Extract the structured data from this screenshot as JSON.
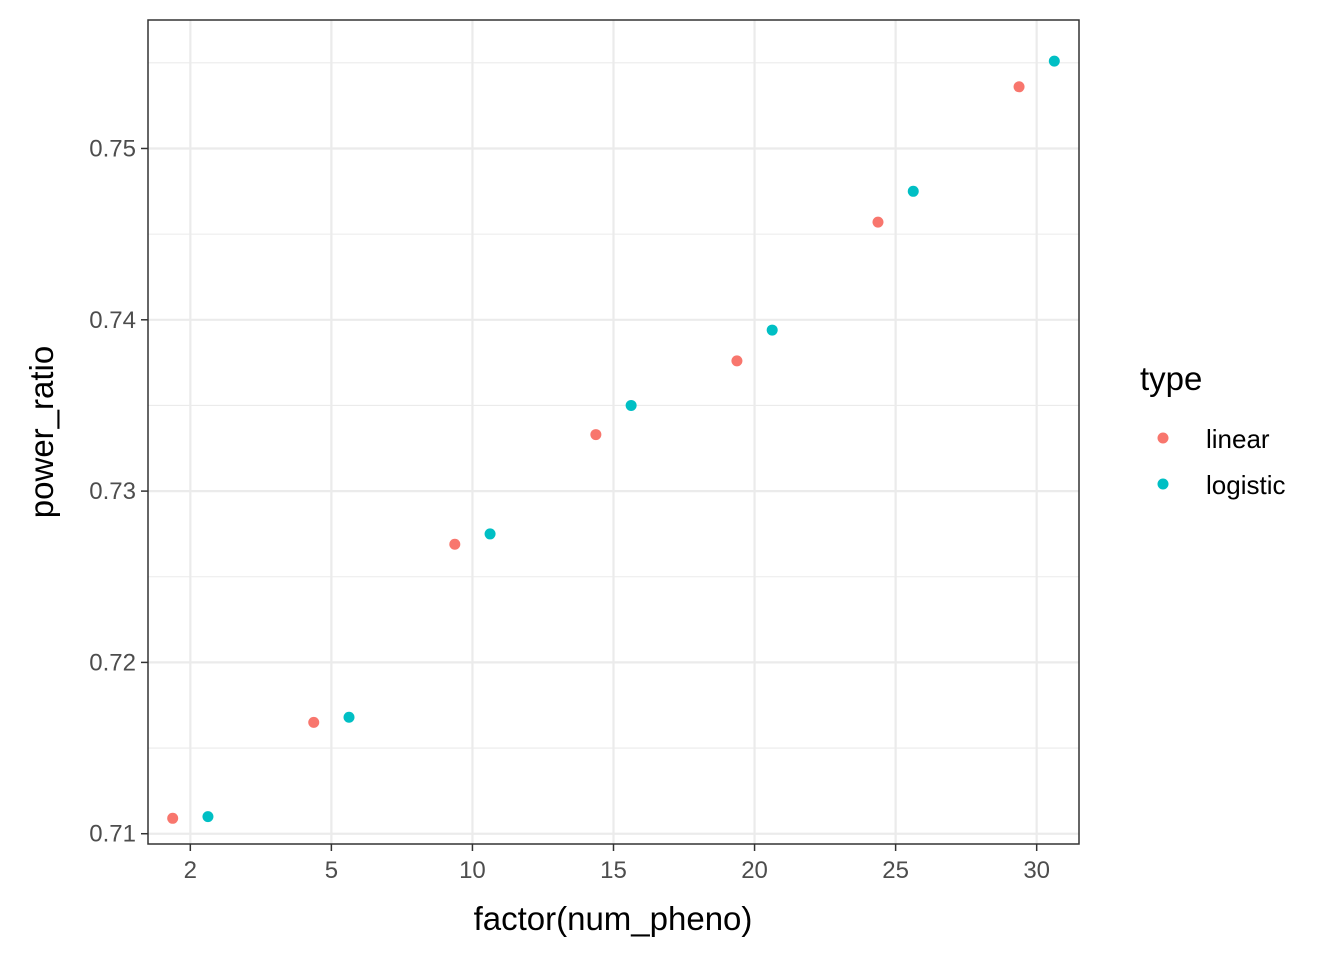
{
  "chart_data": {
    "type": "scatter",
    "title": "",
    "xlabel": "factor(num_pheno)",
    "ylabel": "power_ratio",
    "categories": [
      "2",
      "5",
      "10",
      "15",
      "20",
      "25",
      "30"
    ],
    "ylim": [
      0.7094,
      0.7575
    ],
    "y_ticks": [
      "0.71",
      "0.72",
      "0.73",
      "0.74",
      "0.75"
    ],
    "grid": true,
    "legend": {
      "title": "type",
      "position": "right"
    },
    "series": [
      {
        "name": "linear",
        "color": "#F8766D",
        "values": [
          0.7109,
          0.7165,
          0.7269,
          0.7333,
          0.7376,
          0.7457,
          0.7536
        ]
      },
      {
        "name": "logistic",
        "color": "#00BFC4",
        "values": [
          0.711,
          0.7168,
          0.7275,
          0.735,
          0.7394,
          0.7475,
          0.7551
        ]
      }
    ]
  }
}
